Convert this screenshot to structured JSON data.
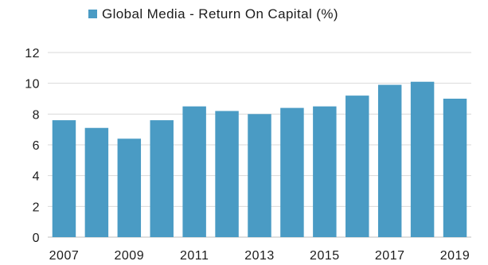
{
  "chart_data": {
    "type": "bar",
    "legend_position": "top-center",
    "grid": true,
    "series": [
      {
        "name": "Global Media - Return On Capital (%)",
        "color": "#4a9bc4",
        "values": [
          7.6,
          7.1,
          6.4,
          7.6,
          8.5,
          8.2,
          8.0,
          8.4,
          8.5,
          9.2,
          9.9,
          10.1,
          9.0
        ]
      }
    ],
    "categories": [
      "2007",
      "2008",
      "2009",
      "2010",
      "2011",
      "2012",
      "2013",
      "2014",
      "2015",
      "2016",
      "2017",
      "2018",
      "2019"
    ],
    "x_tick_labels": [
      "2007",
      "2009",
      "2011",
      "2013",
      "2015",
      "2017",
      "2019"
    ],
    "y_ticks": [
      "0",
      "2",
      "4",
      "6",
      "8",
      "10",
      "12"
    ],
    "ylim": [
      0,
      12
    ],
    "xlabel": "",
    "ylabel": ""
  }
}
